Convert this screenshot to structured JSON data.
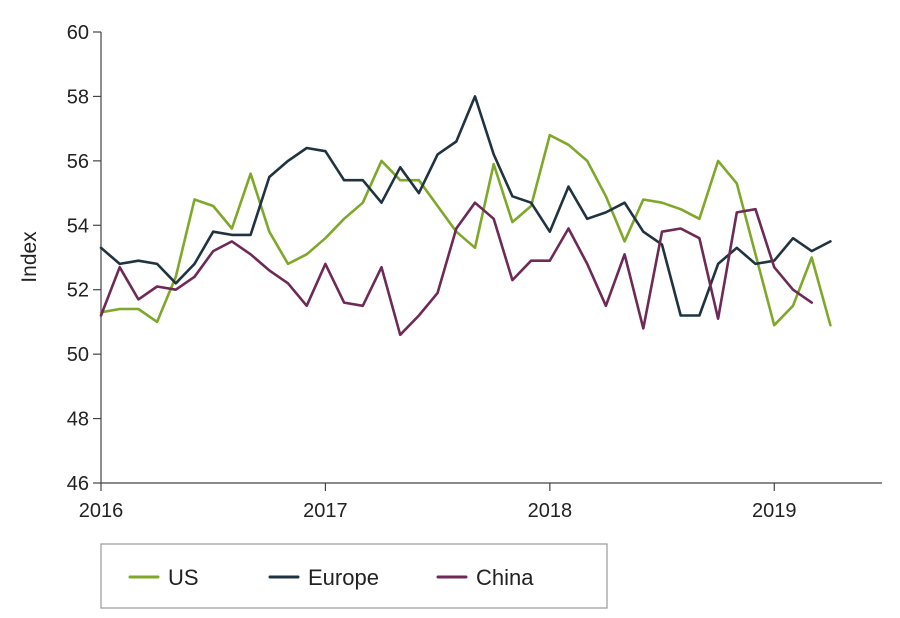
{
  "chart_data": {
    "type": "line",
    "ylabel": "Index",
    "xlabel": "",
    "ylim": [
      46,
      60
    ],
    "yticks": [
      46,
      48,
      50,
      52,
      54,
      56,
      58,
      60
    ],
    "xlim": [
      2016.0,
      2019.48
    ],
    "xticks": [
      {
        "value": 2016,
        "label": "2016"
      },
      {
        "value": 2017,
        "label": "2017"
      },
      {
        "value": 2018,
        "label": "2018"
      },
      {
        "value": 2019,
        "label": "2019"
      }
    ],
    "x_start": 2016.0,
    "x_step": 0.08333,
    "legend_position": "bottom",
    "series": [
      {
        "name": "US",
        "color": "#7fa82a",
        "values": [
          51.3,
          51.4,
          51.4,
          51.0,
          52.4,
          54.8,
          54.6,
          53.9,
          55.6,
          53.8,
          52.8,
          53.1,
          53.6,
          54.2,
          54.7,
          56.0,
          55.4,
          55.4,
          54.6,
          53.8,
          53.3,
          55.9,
          54.1,
          54.6,
          56.8,
          56.5,
          56.0,
          54.9,
          53.5,
          54.8,
          54.7,
          54.5,
          54.2,
          56.0,
          55.3,
          53.1,
          50.9,
          51.5,
          53.0,
          50.9
        ]
      },
      {
        "name": "Europe",
        "color": "#1f3340",
        "values": [
          53.3,
          52.8,
          52.9,
          52.8,
          52.2,
          52.8,
          53.8,
          53.7,
          53.7,
          55.5,
          56.0,
          56.4,
          56.3,
          55.4,
          55.4,
          54.7,
          55.8,
          55.0,
          56.2,
          56.6,
          58.0,
          56.2,
          54.9,
          54.7,
          53.8,
          55.2,
          54.2,
          54.4,
          54.7,
          53.8,
          53.4,
          51.2,
          51.2,
          52.8,
          53.3,
          52.8,
          52.9,
          53.6,
          53.2,
          53.5
        ]
      },
      {
        "name": "China",
        "color": "#6e2a56",
        "values": [
          51.2,
          52.7,
          51.7,
          52.1,
          52.0,
          52.4,
          53.2,
          53.5,
          53.1,
          52.6,
          52.2,
          51.5,
          52.8,
          51.6,
          51.5,
          52.7,
          50.6,
          51.2,
          51.9,
          53.9,
          54.7,
          54.2,
          52.3,
          52.9,
          52.9,
          53.9,
          52.8,
          51.5,
          53.1,
          50.8,
          53.8,
          53.9,
          53.6,
          51.1,
          54.4,
          54.5,
          52.7,
          52.0,
          51.6
        ]
      }
    ]
  }
}
